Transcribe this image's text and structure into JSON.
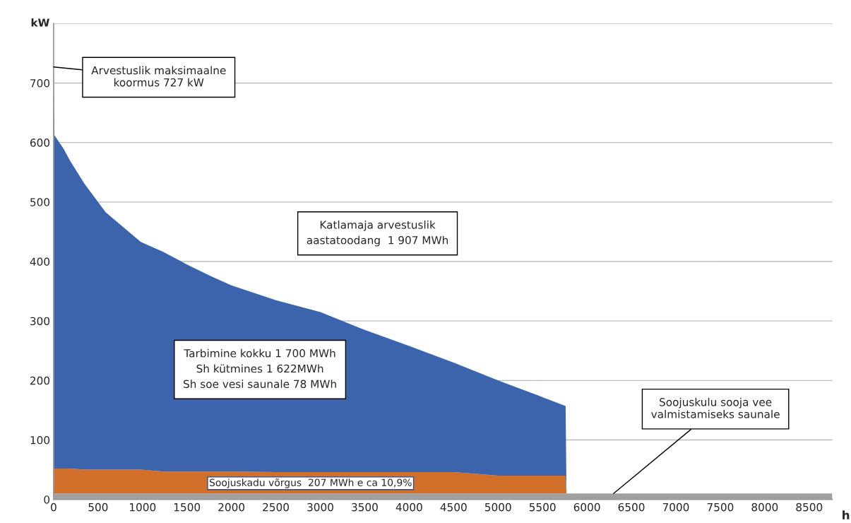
{
  "chart_data": {
    "type": "area",
    "stacked": true,
    "xlabel": "h",
    "ylabel": "kW",
    "x": [
      0,
      10,
      110,
      190,
      350,
      585,
      980,
      1235,
      1500,
      1773,
      2000,
      2500,
      3000,
      3500,
      4000,
      4500,
      5000,
      5500,
      5760,
      5770,
      8760
    ],
    "series": [
      {
        "color": "#a0a0a0",
        "values": [
          10,
          10,
          10,
          10,
          10,
          10,
          10,
          10,
          10,
          10,
          10,
          10,
          10,
          10,
          10,
          10,
          10,
          10,
          10,
          10,
          10
        ]
      },
      {
        "color": "#d2702b",
        "values": [
          42,
          42,
          42,
          42,
          40,
          40,
          40,
          37,
          37,
          37,
          37,
          36,
          36,
          36,
          36,
          36,
          30,
          30,
          30,
          0,
          0
        ]
      },
      {
        "color": "#3c64ad",
        "values": [
          675,
          560,
          538,
          516,
          480,
          433,
          383,
          369,
          348,
          328,
          313,
          289,
          269,
          239,
          212,
          184,
          160,
          132,
          117,
          0,
          0
        ]
      }
    ],
    "xlim": [
      0,
      8760
    ],
    "ylim": [
      0,
      800
    ],
    "xticks": [
      0,
      500,
      1000,
      1500,
      2000,
      2500,
      3000,
      3500,
      4000,
      4500,
      5000,
      5500,
      6000,
      6500,
      7000,
      7500,
      8000,
      8500
    ],
    "yticks": [
      0,
      100,
      200,
      300,
      400,
      500,
      600,
      700
    ],
    "grid": "y",
    "legend": false,
    "annotations": [
      {
        "text": "Arvestuslik maksimaalne\nkoormus 727 kW",
        "x": 0,
        "y": 727
      },
      "Katlamaja arvestuslik\naastatoodang  1 907 MWh",
      "Tarbimine kokku 1 700 MWh\nSh kütmines 1 622MWh\nSh soe vesi saunale 78 MWh",
      "Soojuskadu võrgus  207 MWh e ca 10,9%",
      {
        "text": "Soojuskulu sooja vee\nvalmistamiseks saunale",
        "x": 6300,
        "y": 10
      }
    ]
  }
}
